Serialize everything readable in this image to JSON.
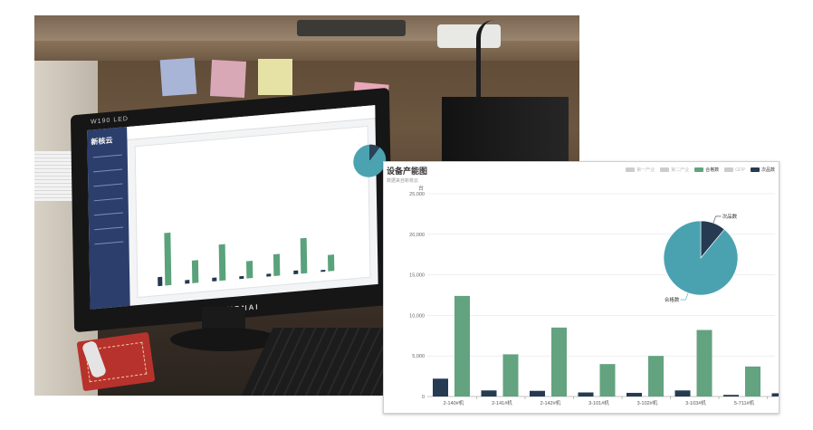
{
  "photo": {
    "monitor_brand": "W190 LED",
    "monitor_model": "HYUIDNAI",
    "screen_logo": "新核云"
  },
  "chart_data": {
    "type": "bar",
    "title": "设备产能图",
    "subtitle": "数据来自新核云",
    "ylabel": "台",
    "ylim": [
      0,
      25000
    ],
    "yticks": [
      0,
      5000,
      10000,
      15000,
      20000,
      25000
    ],
    "ytick_labels": [
      "0",
      "5,000",
      "10,000",
      "15,000",
      "20,000",
      "25,000"
    ],
    "grid": true,
    "legend_position": "top-right",
    "legend": [
      {
        "name": "第一产业",
        "color": "#cccccc",
        "muted": true
      },
      {
        "name": "第二产业",
        "color": "#cccccc",
        "muted": true
      },
      {
        "name": "合格数",
        "color": "#63a37f",
        "muted": false
      },
      {
        "name": "GDP",
        "color": "#cccccc",
        "muted": true
      },
      {
        "name": "次品数",
        "color": "#263b52",
        "muted": false
      }
    ],
    "categories": [
      "2-140#机",
      "2-141#机",
      "2-142#机",
      "3-101#机",
      "3-102#机",
      "3-103#机",
      "5-711#机",
      ""
    ],
    "series": [
      {
        "name": "次品数",
        "color": "#263b52",
        "values": [
          2200,
          750,
          700,
          500,
          450,
          750,
          200,
          400
        ]
      },
      {
        "name": "合格数",
        "color": "#63a37f",
        "values": [
          12400,
          5200,
          8500,
          4000,
          5000,
          8200,
          3700,
          null
        ]
      }
    ],
    "pie": {
      "slices": [
        {
          "name": "次品数",
          "value": 11,
          "color": "#263b52"
        },
        {
          "name": "合格数",
          "value": 89,
          "color": "#4aa2b0"
        }
      ]
    }
  }
}
